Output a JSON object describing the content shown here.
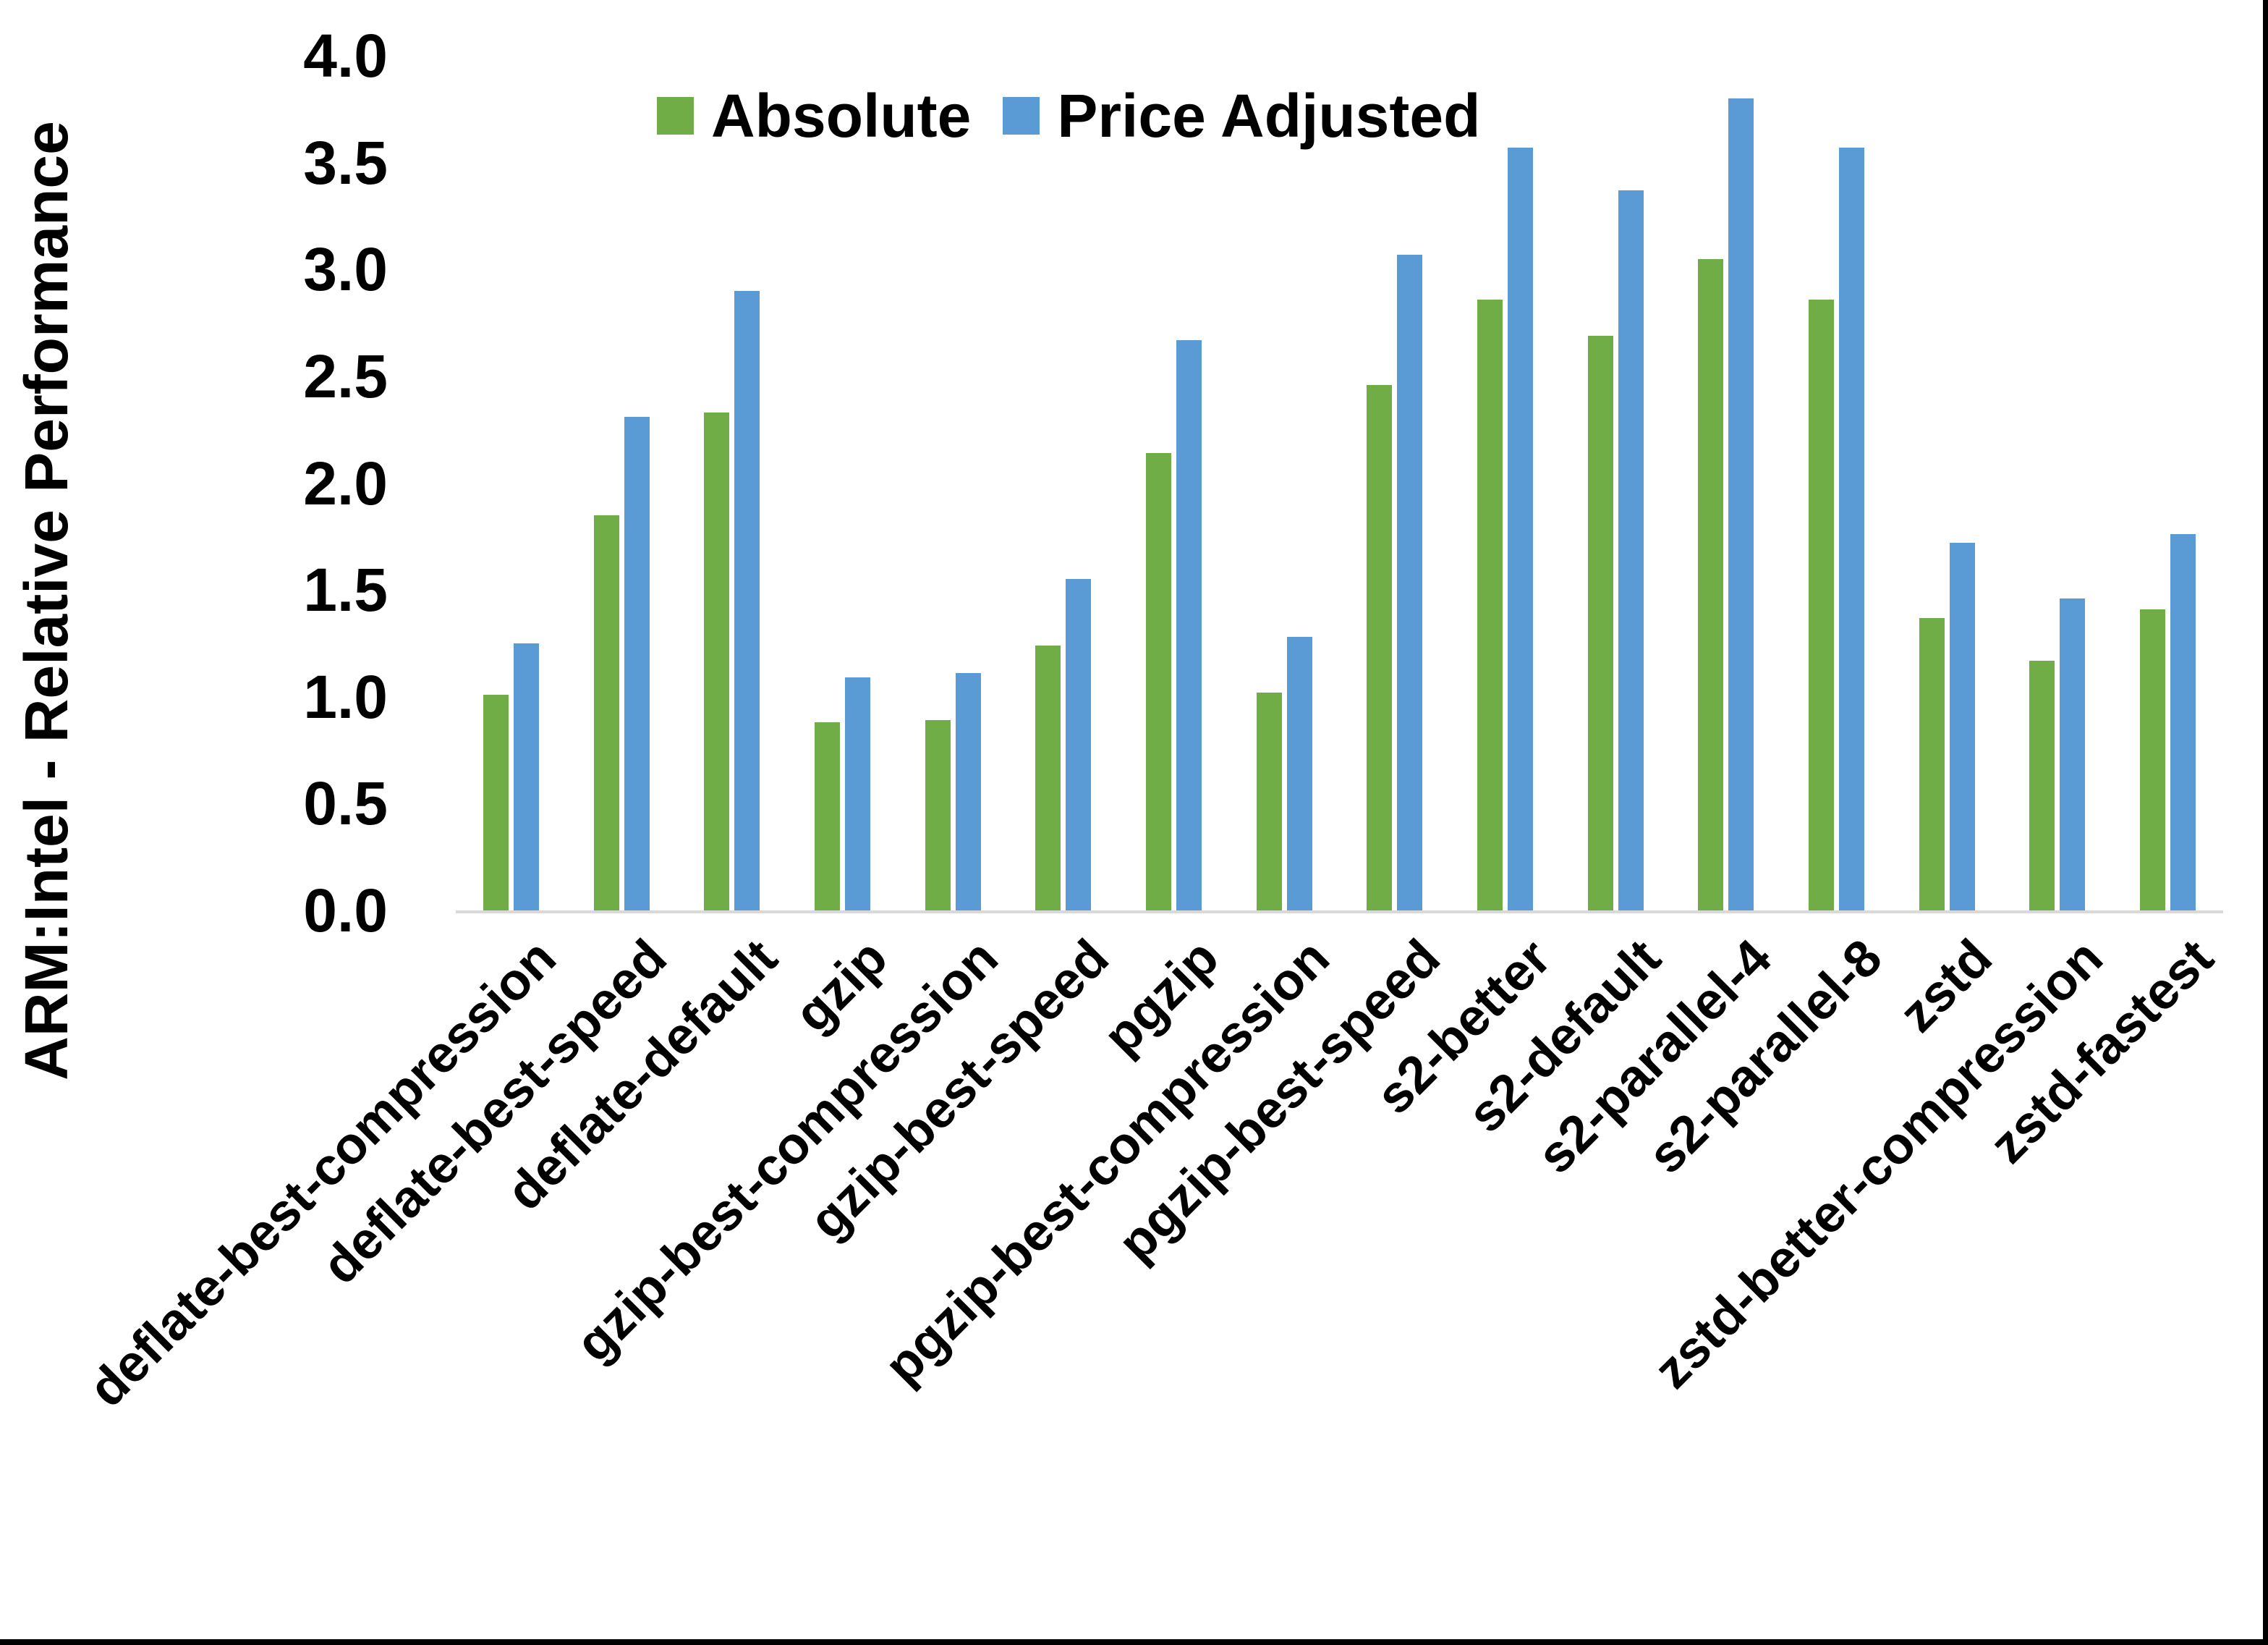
{
  "figure": {
    "background": "#FFFFFF",
    "frame_border_color": "#000000",
    "axis_line_color": "#D9D9D9",
    "text_color": "#000000"
  },
  "chart_data": {
    "type": "bar",
    "title": "",
    "xlabel": "",
    "ylabel": "ARM:Intel - Relative Performance",
    "ylim": [
      0.0,
      4.0
    ],
    "ytick_step": 0.5,
    "ytick_labels": [
      "0.0",
      "0.5",
      "1.0",
      "1.5",
      "2.0",
      "2.5",
      "3.0",
      "3.5",
      "4.0"
    ],
    "grid": "off",
    "legend_position": "top-center-inside",
    "categories": [
      "deflate-best-compression",
      "deflate-best-speed",
      "deflate-default",
      "gzip",
      "gzip-best-compression",
      "gzip-best-speed",
      "pgzip",
      "pgzip-best-compression",
      "pgzip-best-speed",
      "s2-better",
      "s2-default",
      "s2-parallel-4",
      "s2-parallel-8",
      "zstd",
      "zstd-better-compression",
      "zstd-fastest"
    ],
    "series": [
      {
        "name": "Absolute",
        "color": "#70AD47",
        "values": [
          1.01,
          1.85,
          2.33,
          0.88,
          0.89,
          1.24,
          2.14,
          1.02,
          2.46,
          2.86,
          2.69,
          3.05,
          2.86,
          1.37,
          1.17,
          1.41
        ]
      },
      {
        "name": "Price Adjusted",
        "color": "#5B9BD5",
        "values": [
          1.25,
          2.31,
          2.9,
          1.09,
          1.11,
          1.55,
          2.67,
          1.28,
          3.07,
          3.57,
          3.37,
          3.8,
          3.57,
          1.72,
          1.46,
          1.76
        ]
      }
    ]
  }
}
